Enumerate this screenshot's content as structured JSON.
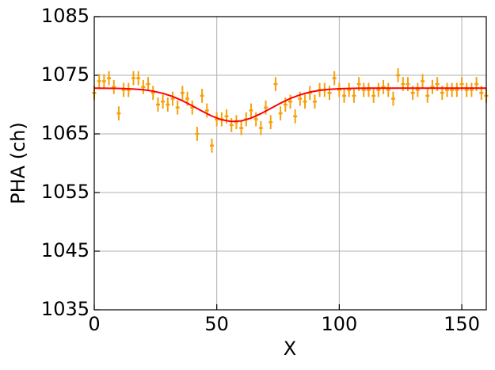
{
  "chart_data": {
    "type": "errorbar-fit",
    "x_label": "X",
    "y_label": "PHA (ch)",
    "xlim": [
      0,
      160
    ],
    "ylim": [
      1035,
      1085
    ],
    "xticks": [
      0,
      50,
      100,
      150
    ],
    "yticks": [
      1035,
      1045,
      1055,
      1065,
      1075,
      1085
    ],
    "grid": true,
    "points": {
      "color": "#f5a00a",
      "x": [
        0,
        2,
        4,
        6,
        8,
        10,
        12,
        14,
        16,
        18,
        20,
        22,
        24,
        26,
        28,
        30,
        32,
        34,
        36,
        38,
        40,
        42,
        44,
        46,
        48,
        50,
        52,
        54,
        56,
        58,
        60,
        62,
        64,
        66,
        68,
        70,
        72,
        74,
        76,
        78,
        80,
        82,
        84,
        86,
        88,
        90,
        92,
        94,
        96,
        98,
        100,
        102,
        104,
        106,
        108,
        110,
        112,
        114,
        116,
        118,
        120,
        122,
        124,
        126,
        128,
        130,
        132,
        134,
        136,
        138,
        140,
        142,
        144,
        146,
        148,
        150,
        152,
        154,
        156,
        158,
        160
      ],
      "values": [
        1072,
        1074,
        1074,
        1074.5,
        1073,
        1068.5,
        1072.5,
        1072.5,
        1074.5,
        1074.5,
        1073,
        1073.5,
        1072,
        1070,
        1070.5,
        1070,
        1071,
        1069.5,
        1072,
        1071,
        1069.5,
        1065,
        1071.5,
        1069,
        1063,
        1067.5,
        1067.5,
        1068,
        1066.5,
        1067,
        1066,
        1067.5,
        1069,
        1067.5,
        1066,
        1069.5,
        1067,
        1073.5,
        1068.5,
        1070,
        1070.5,
        1068,
        1071,
        1070.5,
        1072,
        1070.5,
        1072.5,
        1072.5,
        1072,
        1074.5,
        1072.5,
        1071.5,
        1072.5,
        1071.5,
        1073.5,
        1072.5,
        1072.5,
        1071.5,
        1072.5,
        1073,
        1072.5,
        1071,
        1075,
        1073.5,
        1073.5,
        1072,
        1072.5,
        1074,
        1071.5,
        1073,
        1073.5,
        1072,
        1072.5,
        1072.5,
        1072.5,
        1073.5,
        1072.5,
        1072.5,
        1073.5,
        1072,
        1071.5
      ],
      "errors": [
        1.2,
        1.2,
        1.2,
        1.2,
        1.2,
        1.2,
        1.2,
        1.2,
        1.2,
        1.2,
        1.2,
        1.2,
        1.2,
        1.2,
        1.2,
        1.2,
        1.2,
        1.2,
        1.2,
        1.2,
        1.2,
        1.2,
        1.2,
        1.2,
        1.2,
        1.2,
        1.2,
        1.2,
        1.2,
        1.2,
        1.2,
        1.2,
        1.2,
        1.2,
        1.2,
        1.2,
        1.2,
        1.2,
        1.2,
        1.2,
        1.2,
        1.2,
        1.2,
        1.2,
        1.2,
        1.2,
        1.2,
        1.2,
        1.2,
        1.2,
        1.2,
        1.2,
        1.2,
        1.2,
        1.2,
        1.2,
        1.2,
        1.2,
        1.2,
        1.2,
        1.2,
        1.2,
        1.2,
        1.2,
        1.2,
        1.2,
        1.2,
        1.2,
        1.2,
        1.2,
        1.2,
        1.2,
        1.2,
        1.2,
        1.2,
        1.2,
        1.2,
        1.2,
        1.2,
        1.2,
        1.2
      ]
    },
    "fit": {
      "color": "#ff0000",
      "x": [
        0,
        4,
        8,
        12,
        16,
        20,
        24,
        28,
        32,
        36,
        40,
        44,
        48,
        52,
        56,
        60,
        64,
        68,
        72,
        76,
        80,
        84,
        88,
        92,
        96,
        100,
        104,
        108,
        112,
        116,
        120,
        124,
        128,
        132,
        136,
        140,
        144,
        148,
        152,
        156,
        160
      ],
      "values": [
        1072.8,
        1072.79,
        1072.77,
        1072.74,
        1072.66,
        1072.53,
        1072.29,
        1071.92,
        1071.38,
        1070.66,
        1069.8,
        1068.88,
        1068.04,
        1067.41,
        1067.11,
        1067.21,
        1067.69,
        1068.45,
        1069.34,
        1070.24,
        1071.04,
        1071.67,
        1072.13,
        1072.43,
        1072.61,
        1072.71,
        1072.76,
        1072.78,
        1072.8,
        1072.8,
        1072.8,
        1072.8,
        1072.8,
        1072.8,
        1072.8,
        1072.8,
        1072.8,
        1072.8,
        1072.8,
        1072.8,
        1072.8
      ]
    }
  }
}
